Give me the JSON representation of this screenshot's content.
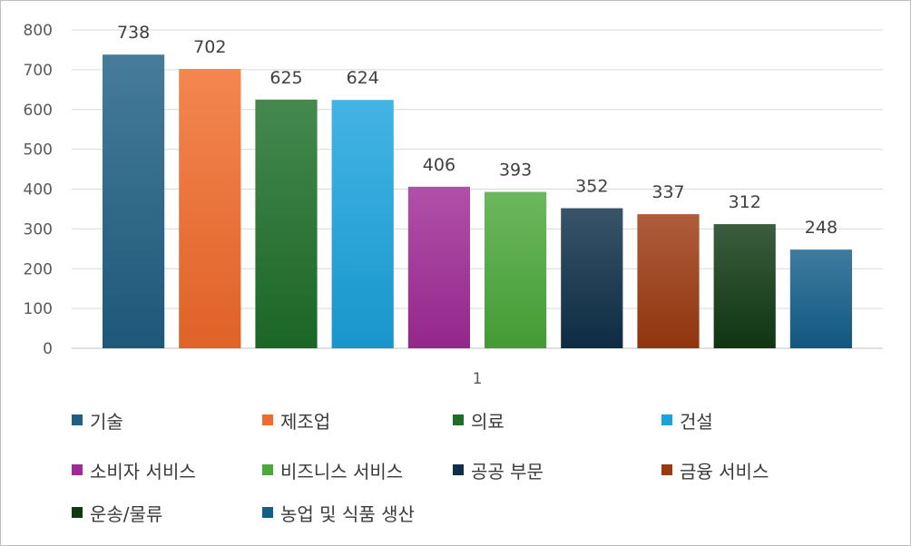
{
  "chart_data": {
    "type": "bar",
    "title": "",
    "xlabel": "",
    "ylabel": "",
    "categories": [
      "1"
    ],
    "ylim": [
      0,
      800
    ],
    "yticks": [
      0,
      100,
      200,
      300,
      400,
      500,
      600,
      700,
      800
    ],
    "grid": true,
    "legend_position": "bottom",
    "series": [
      {
        "name": "기술",
        "values": [
          738
        ],
        "color": "#1f5f84"
      },
      {
        "name": "제조업",
        "values": [
          702
        ],
        "color": "#f26b2a"
      },
      {
        "name": "의료",
        "values": [
          625
        ],
        "color": "#1c6f28"
      },
      {
        "name": "건설",
        "values": [
          624
        ],
        "color": "#1aa3de"
      },
      {
        "name": "소비자 서비스",
        "values": [
          406
        ],
        "color": "#a02a96"
      },
      {
        "name": "비즈니스 서비스",
        "values": [
          393
        ],
        "color": "#4aa93a"
      },
      {
        "name": "공공 부문",
        "values": [
          352
        ],
        "color": "#0e2f48"
      },
      {
        "name": "금융 서비스",
        "values": [
          337
        ],
        "color": "#9c3a0f"
      },
      {
        "name": "운송/물류",
        "values": [
          312
        ],
        "color": "#103a12"
      },
      {
        "name": "농업 및 식품 생산",
        "values": [
          248
        ],
        "color": "#145f8a"
      }
    ]
  }
}
